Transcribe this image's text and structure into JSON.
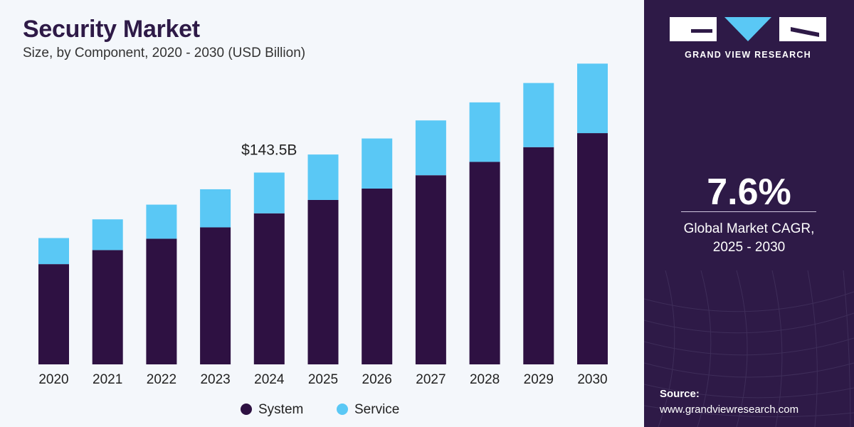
{
  "header": {
    "title": "Security Market",
    "subtitle": "Size, by Component, 2020 - 2030 (USD Billion)"
  },
  "chart_data": {
    "type": "bar",
    "stacked": true,
    "categories": [
      "2020",
      "2021",
      "2022",
      "2023",
      "2024",
      "2025",
      "2026",
      "2027",
      "2028",
      "2029",
      "2030"
    ],
    "series": [
      {
        "name": "System",
        "color": "#2e1142",
        "values": [
          75.0,
          85.5,
          94.0,
          102.5,
          113.0,
          123.0,
          131.5,
          141.5,
          151.5,
          162.5,
          173.0
        ]
      },
      {
        "name": "Service",
        "color": "#5ac8f5",
        "values": [
          19.5,
          23.0,
          25.5,
          28.5,
          30.5,
          34.0,
          37.5,
          41.0,
          44.5,
          48.0,
          52.0
        ]
      }
    ],
    "annotations": [
      {
        "category": "2024",
        "text": "$143.5B"
      }
    ],
    "ylim": [
      0,
      230
    ],
    "grid": false,
    "legend_position": "bottom-center"
  },
  "sidebar": {
    "brand": "GRAND VIEW RESEARCH",
    "cagr_value": "7.6%",
    "cagr_label_line1": "Global Market CAGR,",
    "cagr_label_line2": "2025 - 2030",
    "source_label": "Source:",
    "source_url": "www.grandviewresearch.com"
  },
  "colors": {
    "panel": "#2e1a47",
    "system": "#2e1142",
    "service": "#5ac8f5"
  }
}
